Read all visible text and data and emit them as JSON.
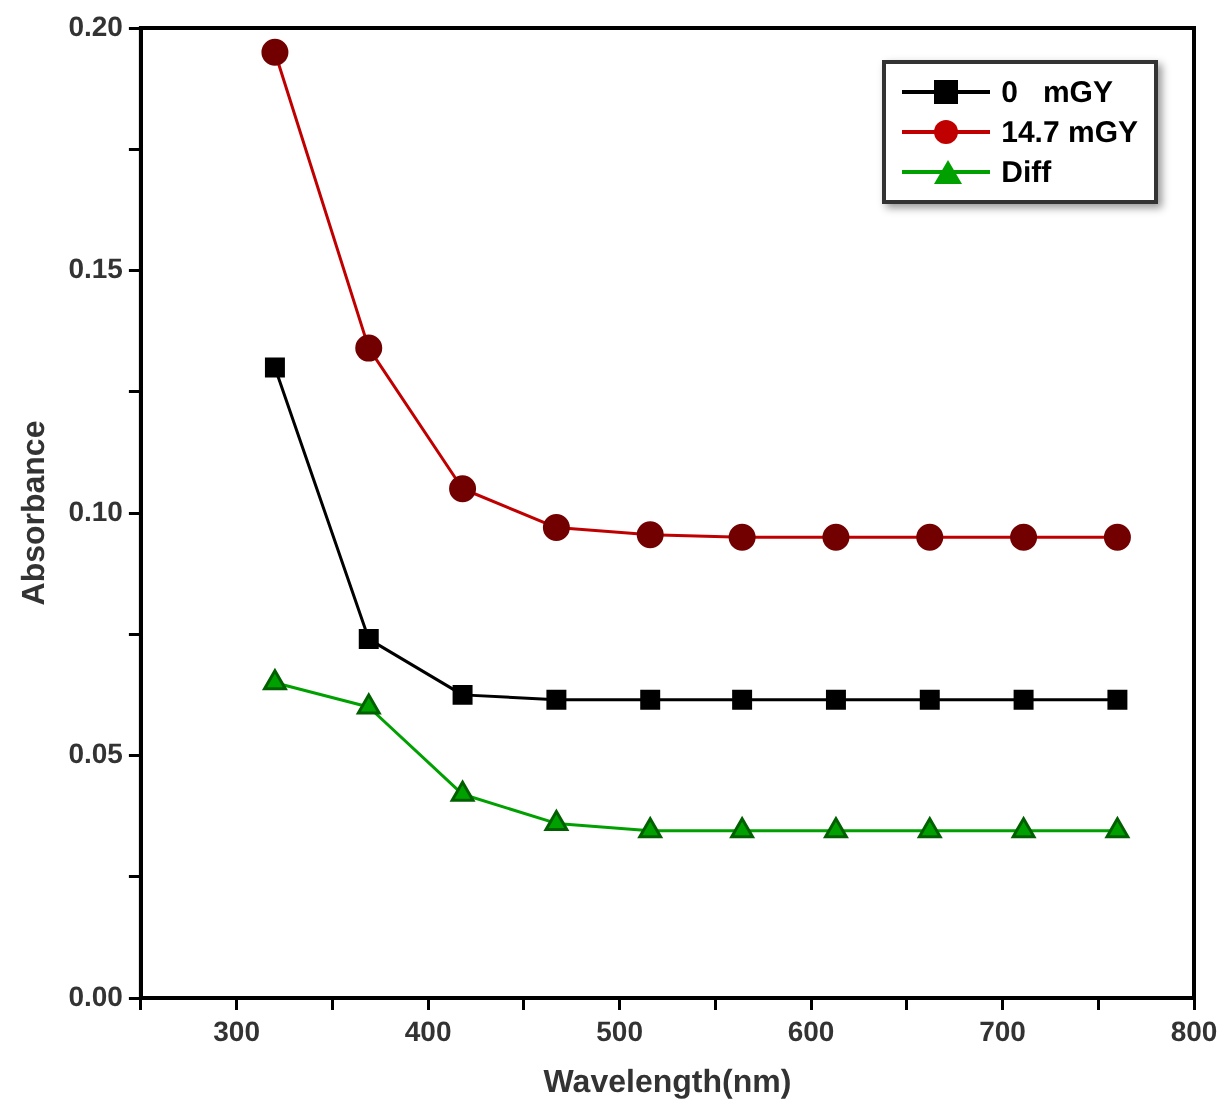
{
  "chart_data": {
    "type": "line",
    "xlabel": "Wavelength(nm)",
    "ylabel": "Absorbance",
    "x": [
      320,
      369,
      418,
      467,
      516,
      564,
      613,
      662,
      711,
      760
    ],
    "series": [
      {
        "name": "0   mGY",
        "color": "#000000",
        "marker": "square",
        "values": [
          0.13,
          0.074,
          0.0625,
          0.0615,
          0.0615,
          0.0615,
          0.0615,
          0.0615,
          0.0615,
          0.0615
        ]
      },
      {
        "name": "14.7 mGY",
        "color": "#c00000",
        "marker": "circle",
        "values": [
          0.195,
          0.134,
          0.105,
          0.097,
          0.0955,
          0.095,
          0.095,
          0.095,
          0.095,
          0.095
        ]
      },
      {
        "name": "Diff",
        "color": "#00a000",
        "marker": "triangle",
        "values": [
          0.065,
          0.06,
          0.042,
          0.036,
          0.0345,
          0.0345,
          0.0345,
          0.0345,
          0.0345,
          0.0345
        ]
      }
    ],
    "xlim": [
      250,
      800
    ],
    "xticks": [
      {
        "value": 250,
        "label": null
      },
      300,
      {
        "value": 350,
        "label": null
      },
      400,
      {
        "value": 450,
        "label": null
      },
      500,
      {
        "value": 550,
        "label": null
      },
      600,
      {
        "value": 650,
        "label": null
      },
      700,
      {
        "value": 750,
        "label": null
      },
      800
    ],
    "ylim": [
      0,
      0.2
    ],
    "yticks": [
      {
        "value": 0,
        "label": "0.00"
      },
      {
        "value": 0.025,
        "label": null
      },
      0.05,
      {
        "value": 0.075,
        "label": null
      },
      {
        "value": 0.1,
        "label": "0.10"
      },
      {
        "value": 0.125,
        "label": null
      },
      0.15,
      {
        "value": 0.175,
        "label": null
      },
      {
        "value": 0.2,
        "label": "0.20"
      }
    ],
    "grid": false,
    "legend": "top right"
  }
}
